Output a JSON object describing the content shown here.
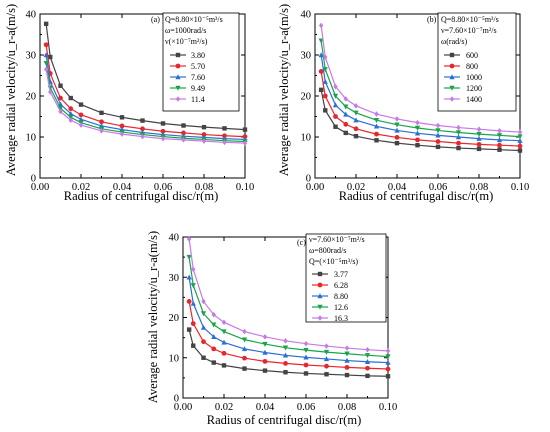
{
  "figure": "three panel line chart",
  "chart_data": [
    {
      "type": "line",
      "panel_label": "(a)",
      "legend_header": [
        "Q=8.80×10⁻⁵m³/s",
        "ω=1000rad/s",
        "ν(×10⁻⁷m²/s)"
      ],
      "xlabel": "Radius of centrifugal disc/r(m)",
      "ylabel": "Average radial velocity/u_r-a(m/s)",
      "xlim": [
        0,
        0.1
      ],
      "ylim": [
        0,
        40
      ],
      "xticks": [
        "0.00",
        "0.02",
        "0.04",
        "0.06",
        "0.08",
        "0.10"
      ],
      "yticks": [
        "0",
        "10",
        "20",
        "30",
        "40"
      ],
      "x": [
        0.003,
        0.005,
        0.01,
        0.015,
        0.02,
        0.03,
        0.04,
        0.05,
        0.06,
        0.07,
        0.08,
        0.09,
        0.1
      ],
      "series": [
        {
          "name": "3.80",
          "color": "#444444",
          "marker": "square",
          "values": [
            37.6,
            29.5,
            22.5,
            19.5,
            17.9,
            15.9,
            14.8,
            14.0,
            13.3,
            12.8,
            12.4,
            12.1,
            11.8
          ]
        },
        {
          "name": "5.70",
          "color": "#e8272d",
          "marker": "circle",
          "values": [
            32.5,
            25.5,
            19.5,
            16.9,
            15.4,
            13.7,
            12.7,
            12.0,
            11.4,
            11.0,
            10.6,
            10.3,
            10.1
          ]
        },
        {
          "name": "7.60",
          "color": "#2a6fd6",
          "marker": "triangle-up",
          "values": [
            30.0,
            23.5,
            18.0,
            15.7,
            14.3,
            12.7,
            11.8,
            11.1,
            10.6,
            10.2,
            9.9,
            9.6,
            9.4
          ]
        },
        {
          "name": "9.49",
          "color": "#1aa34a",
          "marker": "triangle-down",
          "values": [
            28.0,
            22.0,
            17.0,
            14.8,
            13.5,
            12.0,
            11.2,
            10.6,
            10.1,
            9.7,
            9.4,
            9.1,
            8.9
          ]
        },
        {
          "name": "11.4",
          "color": "#c77ae6",
          "marker": "diamond",
          "values": [
            26.5,
            21.0,
            16.2,
            14.1,
            12.9,
            11.5,
            10.7,
            10.1,
            9.6,
            9.3,
            9.0,
            8.7,
            8.5
          ]
        }
      ]
    },
    {
      "type": "line",
      "panel_label": "(b)",
      "legend_header": [
        "Q=8.80×10⁻⁵m³/s",
        "ν=7.60×10⁻⁷m²/s",
        "ω(rad/s)"
      ],
      "xlabel": "Radius of centrifugal disc/r(m)",
      "ylabel": "Average radial velocity/u_r-a(m/s)",
      "xlim": [
        0,
        0.1
      ],
      "ylim": [
        0,
        40
      ],
      "xticks": [
        "0.00",
        "0.02",
        "0.04",
        "0.06",
        "0.08",
        "0.10"
      ],
      "yticks": [
        "0",
        "10",
        "20",
        "30",
        "40"
      ],
      "x": [
        0.003,
        0.005,
        0.01,
        0.015,
        0.02,
        0.03,
        0.04,
        0.05,
        0.06,
        0.07,
        0.08,
        0.09,
        0.1
      ],
      "series": [
        {
          "name": "600",
          "color": "#444444",
          "marker": "square",
          "values": [
            21.5,
            16.5,
            12.5,
            11.0,
            10.2,
            9.2,
            8.5,
            8.0,
            7.6,
            7.3,
            7.1,
            6.9,
            6.7
          ]
        },
        {
          "name": "800",
          "color": "#e8272d",
          "marker": "circle",
          "values": [
            26.0,
            20.0,
            15.0,
            13.1,
            12.0,
            10.7,
            9.9,
            9.3,
            8.9,
            8.5,
            8.2,
            8.0,
            7.8
          ]
        },
        {
          "name": "1000",
          "color": "#2a6fd6",
          "marker": "triangle-up",
          "values": [
            30.0,
            23.5,
            17.8,
            15.5,
            14.1,
            12.6,
            11.6,
            10.9,
            10.4,
            10.0,
            9.6,
            9.3,
            9.1
          ]
        },
        {
          "name": "1200",
          "color": "#1aa34a",
          "marker": "triangle-down",
          "values": [
            33.5,
            26.5,
            20.0,
            17.4,
            15.9,
            14.1,
            13.0,
            12.2,
            11.6,
            11.1,
            10.7,
            10.4,
            10.1
          ]
        },
        {
          "name": "1400",
          "color": "#c77ae6",
          "marker": "diamond",
          "values": [
            37.2,
            29.5,
            22.3,
            19.3,
            17.6,
            15.6,
            14.4,
            13.5,
            12.8,
            12.3,
            11.9,
            11.5,
            11.2
          ]
        }
      ]
    },
    {
      "type": "line",
      "panel_label": "(c)",
      "legend_header": [
        "ν=7.60×10⁻⁷m²/s",
        "ω=800rad/s",
        "Q=(×10⁻⁵m³/s)"
      ],
      "xlabel": "Radius of centrifugal disc/r(m)",
      "ylabel": "Average radial velocity/u_r-a(m/s)",
      "xlim": [
        0,
        0.1
      ],
      "ylim": [
        0,
        40
      ],
      "xticks": [
        "0.00",
        "0.02",
        "0.04",
        "0.06",
        "0.08",
        "0.10"
      ],
      "yticks": [
        "0",
        "10",
        "20",
        "30",
        "40"
      ],
      "x": [
        0.003,
        0.005,
        0.01,
        0.015,
        0.02,
        0.03,
        0.04,
        0.05,
        0.06,
        0.07,
        0.08,
        0.09,
        0.1
      ],
      "series": [
        {
          "name": "3.77",
          "color": "#444444",
          "marker": "square",
          "values": [
            17.0,
            13.0,
            10.0,
            8.8,
            8.1,
            7.3,
            6.8,
            6.4,
            6.1,
            5.9,
            5.7,
            5.5,
            5.4
          ]
        },
        {
          "name": "6.28",
          "color": "#e8272d",
          "marker": "circle",
          "values": [
            24.0,
            18.5,
            14.0,
            12.2,
            11.1,
            9.9,
            9.1,
            8.6,
            8.2,
            7.9,
            7.6,
            7.4,
            7.2
          ]
        },
        {
          "name": "8.80",
          "color": "#2a6fd6",
          "marker": "triangle-up",
          "values": [
            30.0,
            23.5,
            17.5,
            15.2,
            13.8,
            12.2,
            11.3,
            10.6,
            10.1,
            9.7,
            9.3,
            9.0,
            8.8
          ]
        },
        {
          "name": "12.6",
          "color": "#1aa34a",
          "marker": "triangle-down",
          "values": [
            35.0,
            28.0,
            21.0,
            18.2,
            16.5,
            14.5,
            13.4,
            12.5,
            11.9,
            11.4,
            11.0,
            10.6,
            10.3
          ]
        },
        {
          "name": "16.3",
          "color": "#c77ae6",
          "marker": "diamond",
          "values": [
            39.5,
            32.0,
            24.0,
            20.7,
            18.8,
            16.5,
            15.2,
            14.2,
            13.5,
            12.9,
            12.4,
            12.0,
            11.7
          ]
        }
      ]
    }
  ]
}
